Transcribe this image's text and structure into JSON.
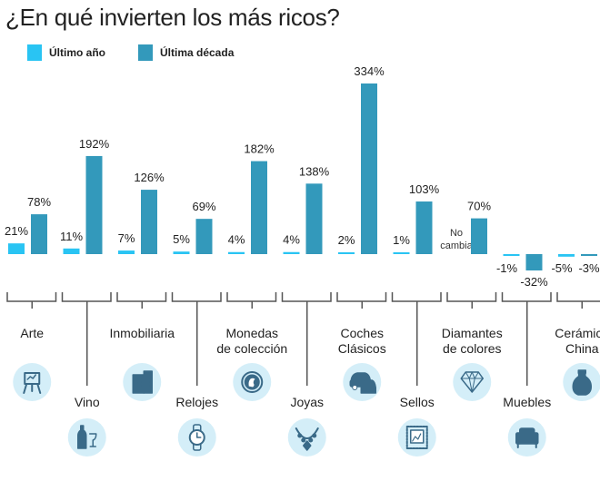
{
  "title": "¿En qué invierten los más ricos?",
  "legend": [
    {
      "label": "Último año",
      "color": "#29c4f3"
    },
    {
      "label": "Última década",
      "color": "#3399bb"
    }
  ],
  "colors": {
    "last_year": "#29c4f3",
    "last_decade": "#3399bb",
    "bracket": "#555555",
    "icon_bg": "#d4eef8",
    "icon_fg": "#3a6a88"
  },
  "chart_data": {
    "type": "bar",
    "title": "¿En qué invierten los más ricos?",
    "xlabel": "",
    "ylabel": "",
    "ylim": [
      -32,
      334
    ],
    "categories": [
      "Arte",
      "Vino",
      "Inmobiliaria",
      "Relojes",
      "Monedas de colección",
      "Joyas",
      "Coches Clásicos",
      "Sellos",
      "Diamantes de colores",
      "Muebles",
      "Cerámica China"
    ],
    "series": [
      {
        "name": "Último año",
        "values": [
          21,
          11,
          7,
          5,
          4,
          4,
          2,
          1,
          0,
          -1,
          -5
        ],
        "labels": [
          "21%",
          "11%",
          "7%",
          "5%",
          "4%",
          "4%",
          "2%",
          "1%",
          "No cambia",
          "-1%",
          "-5%"
        ]
      },
      {
        "name": "Última década",
        "values": [
          78,
          192,
          126,
          69,
          182,
          138,
          334,
          103,
          70,
          -32,
          -3
        ],
        "labels": [
          "78%",
          "192%",
          "126%",
          "69%",
          "182%",
          "138%",
          "334%",
          "103%",
          "70%",
          "-32%",
          "-3%"
        ]
      }
    ],
    "category_labels": [
      [
        "Arte"
      ],
      [
        "Vino"
      ],
      [
        "Inmobiliaria"
      ],
      [
        "Relojes"
      ],
      [
        "Monedas",
        "de colección"
      ],
      [
        "Joyas"
      ],
      [
        "Coches",
        "Clásicos"
      ],
      [
        "Sellos"
      ],
      [
        "Diamantes",
        "de colores"
      ],
      [
        "Muebles"
      ],
      [
        "Cerámica",
        "China"
      ]
    ],
    "icons": [
      "easel-icon",
      "wine-bottle-icon",
      "building-icon",
      "watch-icon",
      "coin-icon",
      "necklace-icon",
      "classic-car-icon",
      "stamp-icon",
      "diamond-icon",
      "armchair-icon",
      "vase-icon"
    ]
  }
}
